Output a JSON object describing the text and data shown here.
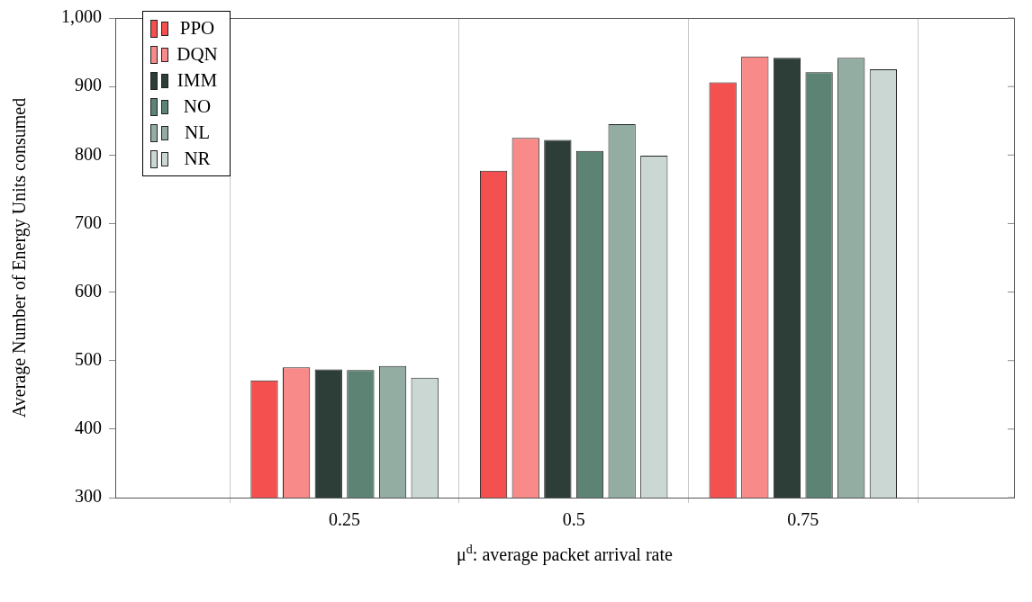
{
  "chart_data": {
    "type": "bar",
    "xlabel": "μ$^{d}$: average packet arrival rate",
    "ylabel": "Average Number of Energy Units consumed",
    "x": [
      0.25,
      0.5,
      0.75
    ],
    "xlim": [
      0,
      0.98
    ],
    "xticks": [
      0.25,
      0.5,
      0.75
    ],
    "ylim": [
      300,
      1000
    ],
    "yticks": [
      300,
      400,
      500,
      600,
      700,
      800,
      900,
      {
        "value": 1000,
        "label": "1,000"
      }
    ],
    "grid": "x",
    "legend": "top left",
    "series": [
      {
        "name": "PPO",
        "color": "#f45050",
        "values": [
          471,
          777,
          906
        ]
      },
      {
        "name": "DQN",
        "color": "#f88a8a",
        "values": [
          490,
          825,
          944
        ]
      },
      {
        "name": "IMM",
        "color": "#2c3e37",
        "values": [
          487,
          822,
          942
        ]
      },
      {
        "name": "NO",
        "color": "#5d8374",
        "values": [
          486,
          806,
          921
        ]
      },
      {
        "name": "NL",
        "color": "#93ada2",
        "values": [
          492,
          845,
          942
        ]
      },
      {
        "name": "NR",
        "color": "#cad7d3",
        "values": [
          475,
          799,
          925
        ]
      }
    ]
  }
}
